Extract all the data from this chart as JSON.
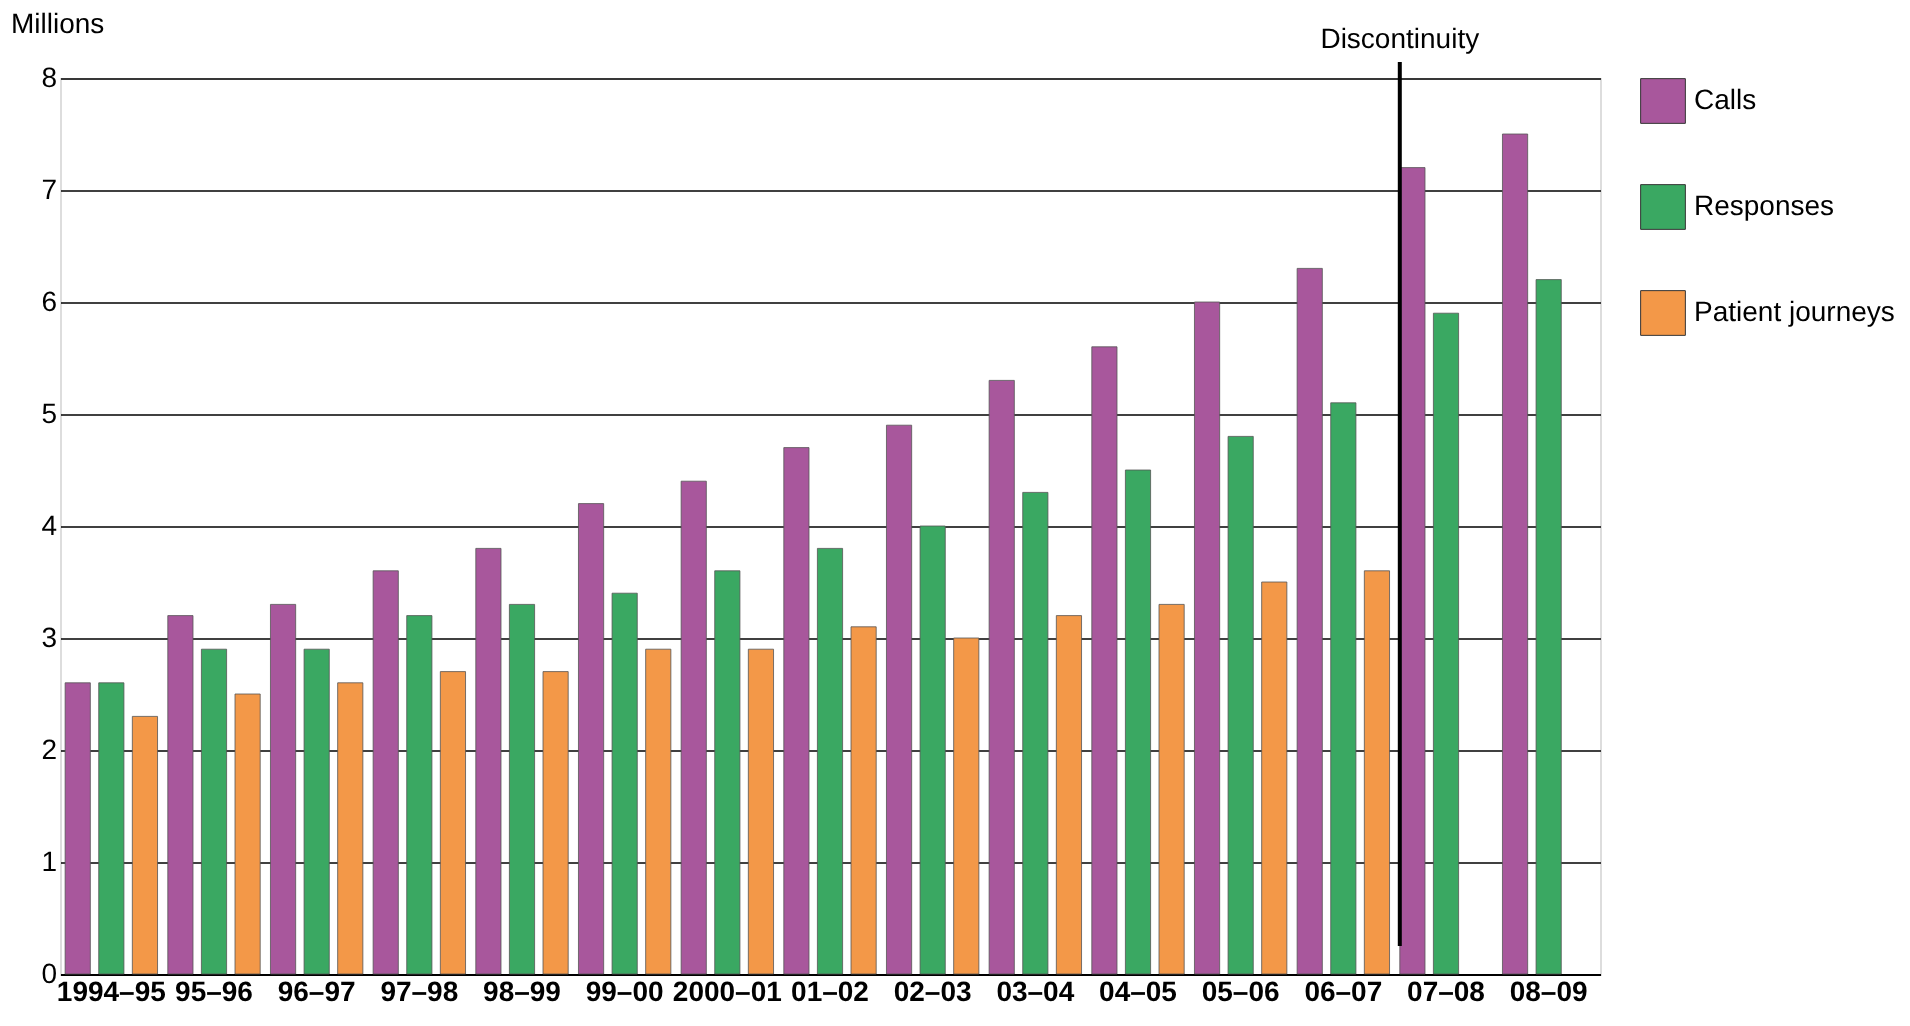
{
  "chart_data": {
    "type": "bar",
    "ylabel": "Millions",
    "categories": [
      "1994–95",
      "95–96",
      "96–97",
      "97–98",
      "98–99",
      "99–00",
      "2000–01",
      "01–02",
      "02–03",
      "03–04",
      "04–05",
      "05–06",
      "06–07",
      "07–08",
      "08–09"
    ],
    "series": [
      {
        "name": "Calls",
        "color": "#a8579c",
        "values": [
          2.6,
          3.2,
          3.3,
          3.6,
          3.8,
          4.2,
          4.4,
          4.7,
          4.9,
          5.3,
          5.6,
          6.0,
          6.3,
          7.2,
          7.5
        ]
      },
      {
        "name": "Responses",
        "color": "#3aa862",
        "values": [
          2.6,
          2.9,
          2.9,
          3.2,
          3.3,
          3.4,
          3.6,
          3.8,
          4.0,
          4.3,
          4.5,
          4.8,
          5.1,
          5.9,
          6.2
        ]
      },
      {
        "name": "Patient journeys",
        "color": "#f39848",
        "values": [
          2.3,
          2.5,
          2.6,
          2.7,
          2.7,
          2.9,
          2.9,
          3.1,
          3.0,
          3.2,
          3.3,
          3.5,
          3.6,
          null,
          null
        ]
      }
    ],
    "ylim": [
      0,
      8
    ],
    "yticks": [
      0,
      1,
      2,
      3,
      4,
      5,
      6,
      7,
      8
    ],
    "grid": "y",
    "legend": "right",
    "ref_lines": [
      {
        "axis": "x",
        "value": "07–08",
        "label": "Discontinuity"
      }
    ]
  }
}
